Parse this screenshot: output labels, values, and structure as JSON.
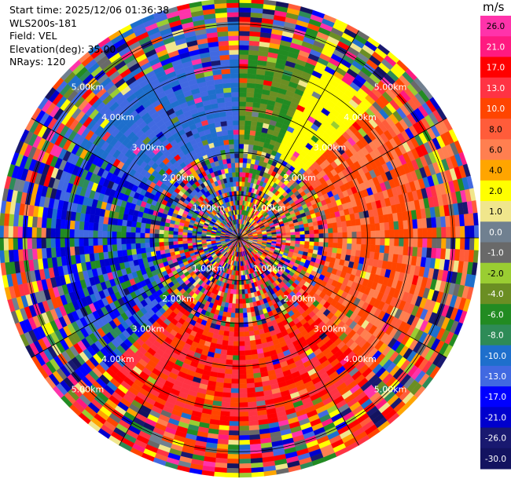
{
  "header": {
    "start_time": "Start time: 2025/12/06 01:36:38",
    "station": "WLS200s-181",
    "field": "Field: VEL",
    "elevation": "Elevation(deg): 35.00",
    "nrays": "NRays: 120"
  },
  "chart_data": {
    "type": "heatmap",
    "projection": "polar-ppi",
    "field": "VEL",
    "unit": "m/s",
    "n_rays": 120,
    "elevation_deg": 35.0,
    "range_rings_km": [
      1.0,
      2.0,
      3.0,
      4.0,
      5.0
    ],
    "range_ring_labels": [
      "1.00km",
      "2.00km",
      "3.00km",
      "4.00km",
      "5.00km"
    ],
    "max_range_km": 5.6,
    "colorbar": {
      "unit_label": "m/s",
      "tick_labels": [
        "26.0",
        "21.0",
        "17.0",
        "13.0",
        "10.0",
        "8.0",
        "6.0",
        "4.0",
        "2.0",
        "1.0",
        "0.0",
        "-1.0",
        "-2.0",
        "-4.0",
        "-6.0",
        "-8.0",
        "-10.0",
        "-13.0",
        "-17.0",
        "-21.0",
        "-26.0",
        "-30.0"
      ],
      "colors": [
        "#ff33aa",
        "#ff1a80",
        "#ff0000",
        "#ff3344",
        "#ff4500",
        "#ff5c3a",
        "#ff7f50",
        "#ffa500",
        "#ffff00",
        "#f0e68c",
        "#708090",
        "#696969",
        "#9acd32",
        "#6b8e23",
        "#228b22",
        "#2e8b57",
        "#1e6fcc",
        "#4169e1",
        "#0000ff",
        "#0000cd",
        "#191970",
        "#131360"
      ]
    },
    "sectors": [
      {
        "azimuth_range_deg": [
          300,
          360
        ],
        "velocity_range_ms": [
          -13,
          -8
        ],
        "description": "inbound blue/green"
      },
      {
        "azimuth_range_deg": [
          0,
          25
        ],
        "velocity_range_ms": [
          -6,
          -2
        ],
        "description": "green"
      },
      {
        "azimuth_range_deg": [
          25,
          45
        ],
        "velocity_range_ms": [
          2,
          4
        ],
        "description": "yellow"
      },
      {
        "azimuth_range_deg": [
          45,
          135
        ],
        "velocity_range_ms": [
          6,
          13
        ],
        "description": "outbound orange/red"
      },
      {
        "azimuth_range_deg": [
          135,
          225
        ],
        "velocity_range_ms": [
          10,
          21
        ],
        "description": "outbound red/pink"
      },
      {
        "azimuth_range_deg": [
          225,
          300
        ],
        "velocity_range_ms": [
          -21,
          -4
        ],
        "description": "mixed"
      }
    ]
  }
}
